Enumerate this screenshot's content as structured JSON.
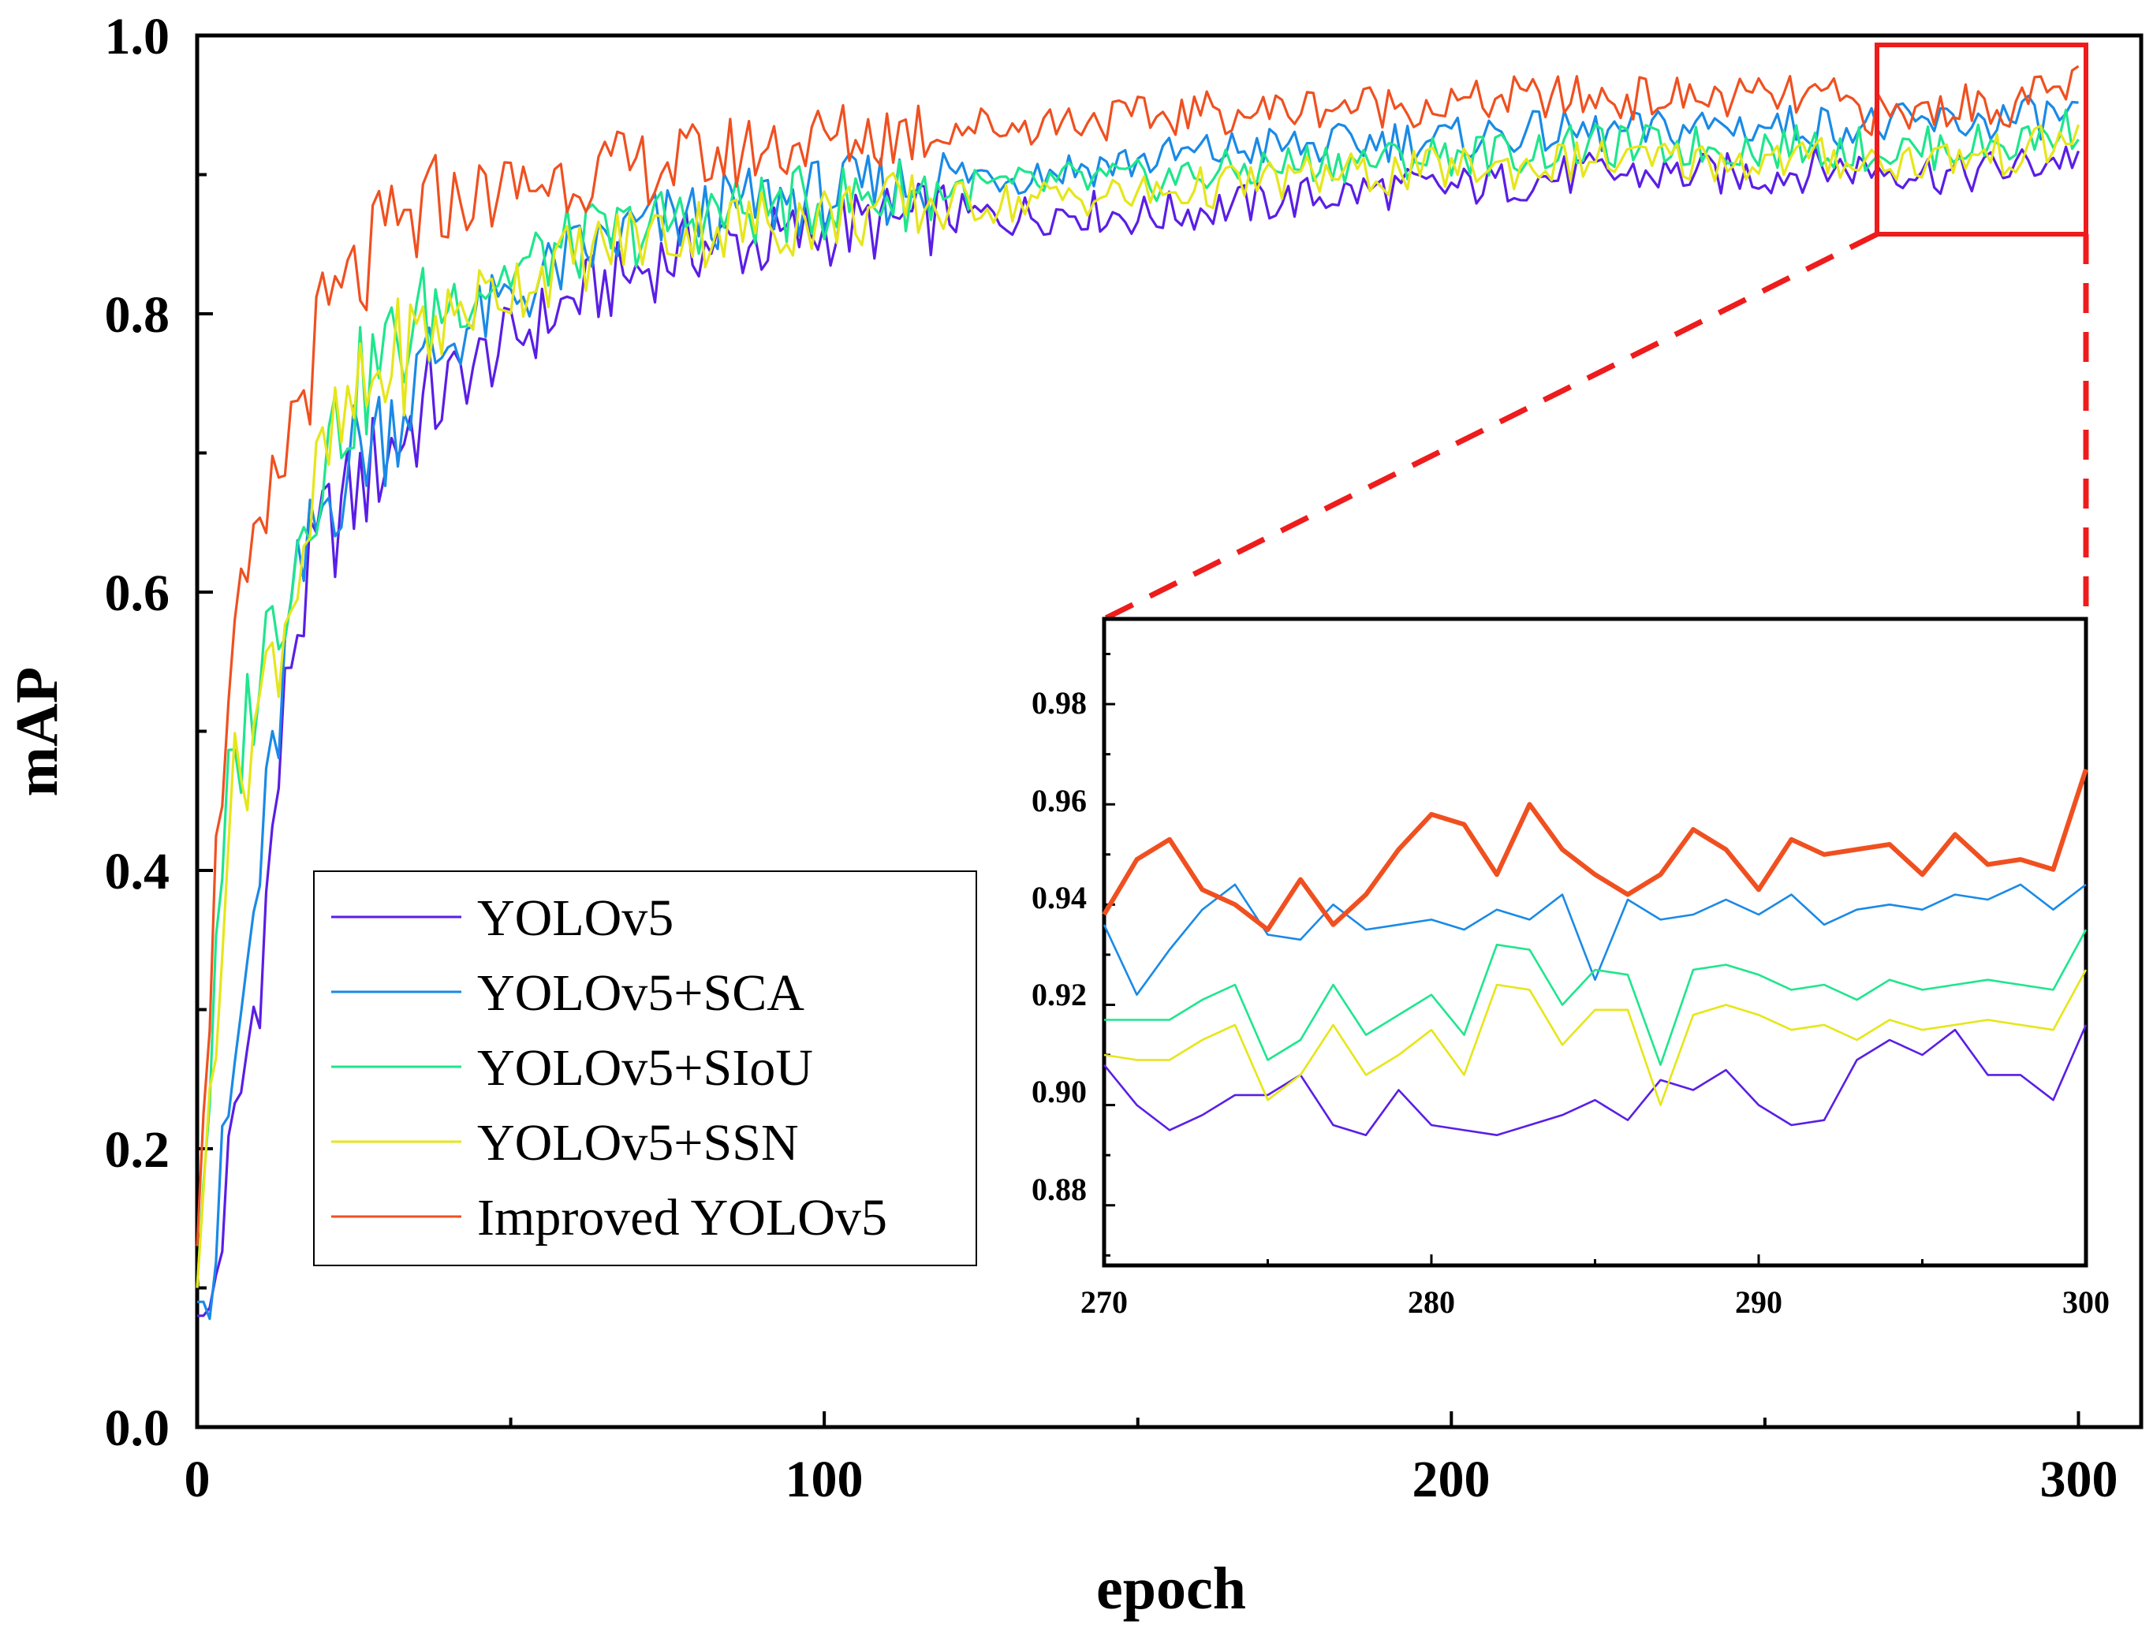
{
  "chart_data": {
    "type": "line",
    "title": "",
    "xlabel": "epoch",
    "ylabel": "mAP",
    "xlim": [
      0,
      310
    ],
    "ylim": [
      0.0,
      1.0
    ],
    "x_ticks": [
      "0",
      "100",
      "200",
      "300"
    ],
    "y_ticks": [
      "0.0",
      "0.2",
      "0.4",
      "0.6",
      "0.8",
      "1.0"
    ],
    "legend_position": "bottom-left",
    "series": [
      {
        "name": "YOLOv5",
        "color": "#5a1ee6",
        "x": [
          0,
          2,
          5,
          10,
          15,
          20,
          25,
          30,
          40,
          50,
          60,
          70,
          80,
          90,
          100,
          110,
          120,
          130,
          140,
          150,
          160,
          170,
          180,
          190,
          200,
          210,
          220,
          230,
          240,
          250,
          260,
          270,
          280,
          290,
          300
        ],
        "y": [
          0.08,
          0.08,
          0.18,
          0.33,
          0.56,
          0.64,
          0.67,
          0.7,
          0.75,
          0.78,
          0.81,
          0.83,
          0.85,
          0.85,
          0.86,
          0.865,
          0.87,
          0.87,
          0.875,
          0.87,
          0.875,
          0.88,
          0.885,
          0.89,
          0.89,
          0.895,
          0.9,
          0.9,
          0.9,
          0.9,
          0.905,
          0.905,
          0.9,
          0.905,
          0.915
        ]
      },
      {
        "name": "YOLOv5+SCA",
        "color": "#1a8ae6",
        "x": [
          0,
          2,
          5,
          10,
          15,
          20,
          25,
          30,
          40,
          50,
          60,
          70,
          80,
          90,
          100,
          110,
          120,
          130,
          140,
          150,
          160,
          170,
          180,
          190,
          200,
          210,
          220,
          230,
          240,
          250,
          260,
          270,
          280,
          290,
          300
        ],
        "y": [
          0.09,
          0.09,
          0.22,
          0.4,
          0.58,
          0.66,
          0.7,
          0.72,
          0.78,
          0.81,
          0.84,
          0.86,
          0.87,
          0.88,
          0.885,
          0.89,
          0.9,
          0.9,
          0.905,
          0.91,
          0.915,
          0.92,
          0.92,
          0.925,
          0.925,
          0.93,
          0.93,
          0.93,
          0.935,
          0.935,
          0.935,
          0.935,
          0.937,
          0.94,
          0.943
        ]
      },
      {
        "name": "YOLOv5+SIoU",
        "color": "#1ee68c",
        "x": [
          0,
          2,
          5,
          10,
          15,
          20,
          25,
          30,
          40,
          50,
          60,
          70,
          80,
          90,
          100,
          110,
          120,
          130,
          140,
          150,
          160,
          170,
          180,
          190,
          200,
          210,
          220,
          230,
          240,
          250,
          260,
          270,
          280,
          290,
          300
        ],
        "y": [
          0.1,
          0.25,
          0.45,
          0.55,
          0.62,
          0.7,
          0.74,
          0.77,
          0.81,
          0.83,
          0.85,
          0.86,
          0.87,
          0.875,
          0.88,
          0.885,
          0.89,
          0.89,
          0.895,
          0.895,
          0.9,
          0.905,
          0.91,
          0.91,
          0.915,
          0.915,
          0.92,
          0.92,
          0.92,
          0.92,
          0.92,
          0.917,
          0.92,
          0.923,
          0.935
        ]
      },
      {
        "name": "YOLOv5+SSN",
        "color": "#e6e61a",
        "x": [
          0,
          2,
          5,
          10,
          15,
          20,
          25,
          30,
          40,
          50,
          60,
          70,
          80,
          90,
          100,
          110,
          120,
          130,
          140,
          150,
          160,
          170,
          180,
          190,
          200,
          210,
          220,
          230,
          240,
          250,
          260,
          270,
          280,
          290,
          300
        ],
        "y": [
          0.1,
          0.24,
          0.44,
          0.52,
          0.6,
          0.69,
          0.73,
          0.76,
          0.8,
          0.82,
          0.84,
          0.855,
          0.86,
          0.865,
          0.87,
          0.875,
          0.88,
          0.88,
          0.885,
          0.885,
          0.89,
          0.895,
          0.9,
          0.9,
          0.905,
          0.905,
          0.91,
          0.91,
          0.91,
          0.91,
          0.912,
          0.909,
          0.912,
          0.915,
          0.927
        ]
      },
      {
        "name": "Improved YOLOv5",
        "color": "#f05020",
        "x": [
          0,
          2,
          5,
          10,
          15,
          20,
          25,
          30,
          40,
          50,
          60,
          70,
          80,
          90,
          100,
          110,
          120,
          130,
          140,
          150,
          160,
          170,
          180,
          190,
          200,
          210,
          220,
          230,
          240,
          250,
          260,
          270,
          280,
          290,
          300
        ],
        "y": [
          0.13,
          0.32,
          0.55,
          0.62,
          0.72,
          0.79,
          0.82,
          0.85,
          0.88,
          0.89,
          0.9,
          0.905,
          0.91,
          0.92,
          0.925,
          0.93,
          0.935,
          0.935,
          0.94,
          0.94,
          0.945,
          0.945,
          0.95,
          0.95,
          0.95,
          0.955,
          0.955,
          0.955,
          0.955,
          0.955,
          0.955,
          0.94,
          0.95,
          0.95,
          0.967
        ]
      }
    ],
    "inset": {
      "xlim": [
        270,
        300
      ],
      "ylim": [
        0.868,
        0.997
      ],
      "x_ticks": [
        "270",
        "280",
        "290",
        "300"
      ],
      "y_ticks": [
        "0.88",
        "0.90",
        "0.92",
        "0.94",
        "0.96",
        "0.98"
      ],
      "x": [
        270,
        271,
        272,
        273,
        274,
        275,
        276,
        277,
        278,
        279,
        280,
        281,
        282,
        283,
        284,
        285,
        286,
        287,
        288,
        289,
        290,
        291,
        292,
        293,
        294,
        295,
        296,
        297,
        298,
        299,
        300
      ],
      "series": [
        {
          "name": "YOLOv5",
          "values": [
            0.908,
            0.9,
            0.895,
            0.898,
            0.902,
            0.902,
            0.906,
            0.896,
            0.894,
            0.903,
            0.896,
            0.895,
            0.894,
            0.896,
            0.898,
            0.901,
            0.897,
            0.905,
            0.903,
            0.907,
            0.9,
            0.896,
            0.897,
            0.909,
            0.913,
            0.91,
            0.915,
            0.906,
            0.906,
            0.901,
            0.916
          ]
        },
        {
          "name": "YOLOv5+SCA",
          "values": [
            0.936,
            0.922,
            0.931,
            0.939,
            0.944,
            0.934,
            0.933,
            0.94,
            0.935,
            0.936,
            0.937,
            0.935,
            0.939,
            0.937,
            0.942,
            0.925,
            0.941,
            0.937,
            0.938,
            0.941,
            0.938,
            0.942,
            0.936,
            0.939,
            0.94,
            0.939,
            0.942,
            0.941,
            0.944,
            0.939,
            0.944
          ]
        },
        {
          "name": "YOLOv5+SIoU",
          "values": [
            0.917,
            0.917,
            0.917,
            0.921,
            0.924,
            0.909,
            0.913,
            0.924,
            0.914,
            0.918,
            0.922,
            0.914,
            0.932,
            0.931,
            0.92,
            0.927,
            0.926,
            0.908,
            0.927,
            0.928,
            0.926,
            0.923,
            0.924,
            0.921,
            0.925,
            0.923,
            0.924,
            0.925,
            0.924,
            0.923,
            0.935
          ]
        },
        {
          "name": "YOLOv5+SSN",
          "values": [
            0.91,
            0.909,
            0.909,
            0.913,
            0.916,
            0.901,
            0.906,
            0.916,
            0.906,
            0.91,
            0.915,
            0.906,
            0.924,
            0.923,
            0.912,
            0.919,
            0.919,
            0.9,
            0.918,
            0.92,
            0.918,
            0.915,
            0.916,
            0.913,
            0.917,
            0.915,
            0.916,
            0.917,
            0.916,
            0.915,
            0.927
          ]
        },
        {
          "name": "Improved YOLOv5",
          "values": [
            0.938,
            0.949,
            0.953,
            0.943,
            0.94,
            0.935,
            0.945,
            0.936,
            0.942,
            0.951,
            0.958,
            0.956,
            0.946,
            0.96,
            0.951,
            0.946,
            0.942,
            0.946,
            0.955,
            0.951,
            0.943,
            0.953,
            0.95,
            0.951,
            0.952,
            0.946,
            0.954,
            0.948,
            0.949,
            0.947,
            0.967
          ]
        }
      ]
    }
  }
}
